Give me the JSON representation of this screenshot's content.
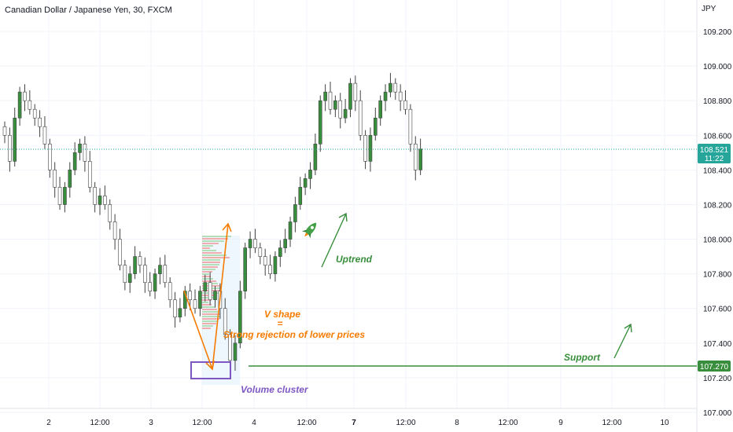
{
  "header": {
    "symbol_title": "Canadian Dollar / Japanese Yen, 30, FXCM"
  },
  "price_axis": {
    "currency": "JPY",
    "ticks": [
      "109.200",
      "109.000",
      "108.800",
      "108.600",
      "108.400",
      "108.200",
      "108.000",
      "107.800",
      "107.600",
      "107.400",
      "107.200",
      "107.000"
    ],
    "last_price_label": "108.521",
    "countdown_label": "11:22",
    "support_label": "107.270"
  },
  "time_axis": {
    "ticks": [
      "2",
      "12:00",
      "3",
      "12:00",
      "4",
      "12:00",
      "7",
      "12:00",
      "8",
      "12:00",
      "9",
      "12:00",
      "10"
    ]
  },
  "annotations": {
    "volume_cluster": "Volume cluster",
    "v_shape": "V shape",
    "equals": "=",
    "rejection": "Strong rejection of lower prices",
    "uptrend": "Uptrend",
    "support": "Support"
  },
  "colors": {
    "up": "#26a69a",
    "down": "#ef5350",
    "candle_body": "#2e7d32",
    "orange": "#f57c00",
    "purple": "#7e57c2",
    "green_line": "#388e3c",
    "price_label_bg": "#26a69a"
  },
  "chart_data": {
    "type": "candlestick",
    "title": "Canadian Dollar / Japanese Yen, 30, FXCM",
    "ylim": [
      107.0,
      109.3
    ],
    "last_price": 108.521,
    "support_level": 107.27,
    "x_labels": [
      "2",
      "12:00",
      "3",
      "12:00",
      "4",
      "12:00",
      "7",
      "12:00",
      "8",
      "12:00",
      "9",
      "12:00",
      "10"
    ],
    "close_path": [
      108.6,
      108.45,
      108.7,
      108.85,
      108.8,
      108.75,
      108.7,
      108.65,
      108.55,
      108.4,
      108.3,
      108.2,
      108.3,
      108.4,
      108.5,
      108.55,
      108.45,
      108.3,
      108.2,
      108.25,
      108.2,
      108.1,
      108.0,
      107.85,
      107.75,
      107.8,
      107.9,
      107.85,
      107.75,
      107.7,
      107.8,
      107.85,
      107.75,
      107.65,
      107.55,
      107.6,
      107.7,
      107.65,
      107.6,
      107.7,
      107.75,
      107.65,
      107.7,
      107.6,
      107.45,
      107.3,
      107.4,
      107.7,
      107.95,
      108.0,
      107.95,
      107.9,
      107.85,
      107.8,
      107.9,
      107.95,
      108.0,
      108.1,
      108.2,
      108.3,
      108.35,
      108.4,
      108.55,
      108.8,
      108.85,
      108.75,
      108.8,
      108.7,
      108.75,
      108.9,
      108.8,
      108.6,
      108.45,
      108.6,
      108.7,
      108.8,
      108.85,
      108.9,
      108.85,
      108.8,
      108.75,
      108.55,
      108.4,
      108.521
    ]
  }
}
